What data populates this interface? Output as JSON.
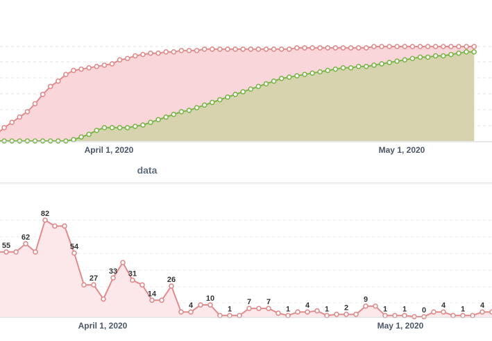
{
  "chart_data": [
    {
      "type": "area",
      "title": "",
      "xlabel": "",
      "ylabel": "",
      "x_ticks": [
        "April 1, 2020",
        "May 1, 2020"
      ],
      "grid": true,
      "series": [
        {
          "color": "#e08b8b",
          "values": [
            5,
            10,
            14,
            18,
            22,
            28,
            35,
            41,
            45,
            50,
            53,
            54,
            55,
            56,
            57,
            58,
            61,
            62,
            64,
            65,
            66,
            66,
            67,
            67,
            68,
            68,
            68,
            69,
            69,
            69,
            69,
            69,
            69,
            69,
            69,
            69,
            69,
            69,
            69,
            70,
            70,
            70,
            70,
            70,
            70,
            70,
            70,
            70,
            70,
            71,
            71,
            71,
            71,
            71,
            71,
            71,
            71,
            71,
            71,
            71,
            71,
            71,
            71
          ]
        },
        {
          "color": "#7ab648",
          "values": [
            0,
            0,
            0,
            0,
            0,
            0,
            0,
            0,
            0,
            0,
            1,
            3,
            5,
            8,
            10,
            10,
            10,
            10,
            11,
            12,
            14,
            16,
            18,
            20,
            22,
            23,
            25,
            27,
            29,
            31,
            33,
            35,
            37,
            39,
            41,
            43,
            45,
            47,
            48,
            49,
            50,
            51,
            52,
            53,
            54,
            55,
            55,
            56,
            56,
            57,
            58,
            59,
            60,
            61,
            62,
            63,
            63,
            64,
            64,
            65,
            66,
            67,
            67
          ]
        }
      ]
    },
    {
      "type": "area",
      "title": "",
      "xlabel": "data",
      "ylabel": "",
      "x_ticks": [
        "April 1, 2020",
        "May 1, 2020"
      ],
      "grid": true,
      "series": [
        {
          "color": "#e08b8b",
          "values": [
            55,
            55,
            55,
            62,
            55,
            82,
            77,
            77,
            54,
            27,
            27,
            15,
            33,
            46,
            31,
            27,
            14,
            14,
            26,
            4,
            4,
            10,
            10,
            1,
            1,
            1,
            7,
            7,
            7,
            3,
            1,
            4,
            4,
            5,
            1,
            2,
            2,
            2,
            9,
            9,
            1,
            1,
            1,
            0,
            0,
            4,
            4,
            1,
            1,
            1,
            4,
            4,
            4
          ],
          "labels": [
            {
              "i": 1,
              "text": "55"
            },
            {
              "i": 3,
              "text": "62"
            },
            {
              "i": 5,
              "text": "82"
            },
            {
              "i": 8,
              "text": "54"
            },
            {
              "i": 10,
              "text": "27"
            },
            {
              "i": 12,
              "text": "33"
            },
            {
              "i": 14,
              "text": "31"
            },
            {
              "i": 16,
              "text": "14"
            },
            {
              "i": 18,
              "text": "26"
            },
            {
              "i": 20,
              "text": "4"
            },
            {
              "i": 22,
              "text": "10"
            },
            {
              "i": 24,
              "text": "1"
            },
            {
              "i": 26,
              "text": "7"
            },
            {
              "i": 28,
              "text": "7"
            },
            {
              "i": 30,
              "text": "1"
            },
            {
              "i": 32,
              "text": "4"
            },
            {
              "i": 34,
              "text": "1"
            },
            {
              "i": 36,
              "text": "2"
            },
            {
              "i": 38,
              "text": "9"
            },
            {
              "i": 40,
              "text": "1"
            },
            {
              "i": 42,
              "text": "1"
            },
            {
              "i": 44,
              "text": "0"
            },
            {
              "i": 46,
              "text": "4"
            },
            {
              "i": 48,
              "text": "1"
            },
            {
              "i": 50,
              "text": "4"
            }
          ]
        }
      ]
    }
  ],
  "data_label": "data"
}
